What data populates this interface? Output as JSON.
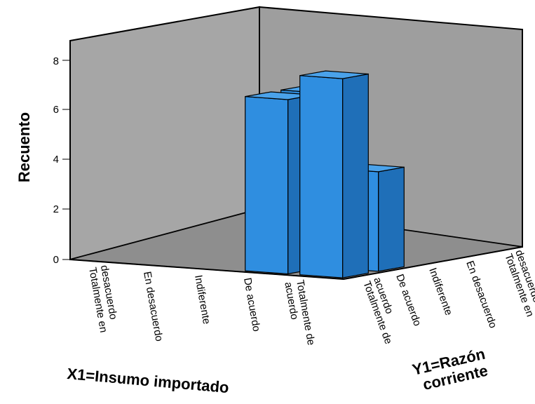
{
  "chart_data": {
    "type": "bar",
    "subtype": "3d-bar",
    "ylabel": "Recuento",
    "xlabel": "X1=Insumo importado",
    "zlabel_line1": "Y1=Razón",
    "zlabel_line2": "corriente",
    "x_categories": [
      [
        "Totalmente en",
        "desacuerdo"
      ],
      [
        "En desacuerdo"
      ],
      [
        "Indiferente"
      ],
      [
        "De acuerdo"
      ],
      [
        "Totalmente de",
        "acuerdo"
      ]
    ],
    "z_categories": [
      [
        "Totalmente de",
        "acuerdo"
      ],
      [
        "De acuerdo"
      ],
      [
        "Indiferente"
      ],
      [
        "En desacuerdo"
      ],
      [
        "Totalmente en",
        "desacuerdo"
      ]
    ],
    "y_ticks": [
      0,
      2,
      4,
      6,
      8
    ],
    "ylim": [
      0,
      9
    ],
    "bars": [
      {
        "x": "De acuerdo",
        "z": "Totalmente de acuerdo",
        "value": 7
      },
      {
        "x": "De acuerdo",
        "z": "De acuerdo",
        "value": 7
      },
      {
        "x": "Totalmente de acuerdo",
        "z": "Totalmente de acuerdo",
        "value": 8
      },
      {
        "x": "Totalmente de acuerdo",
        "z": "De acuerdo",
        "value": 4
      }
    ],
    "grid": false,
    "legend": "none",
    "colors": {
      "bar_front": "#2f8ee0",
      "bar_side": "#1f6fb8",
      "bar_top": "#4aa2ea",
      "back_wall": "#a6a6a6",
      "side_wall": "#9a9a9a",
      "floor": "#8c8c8c"
    }
  }
}
